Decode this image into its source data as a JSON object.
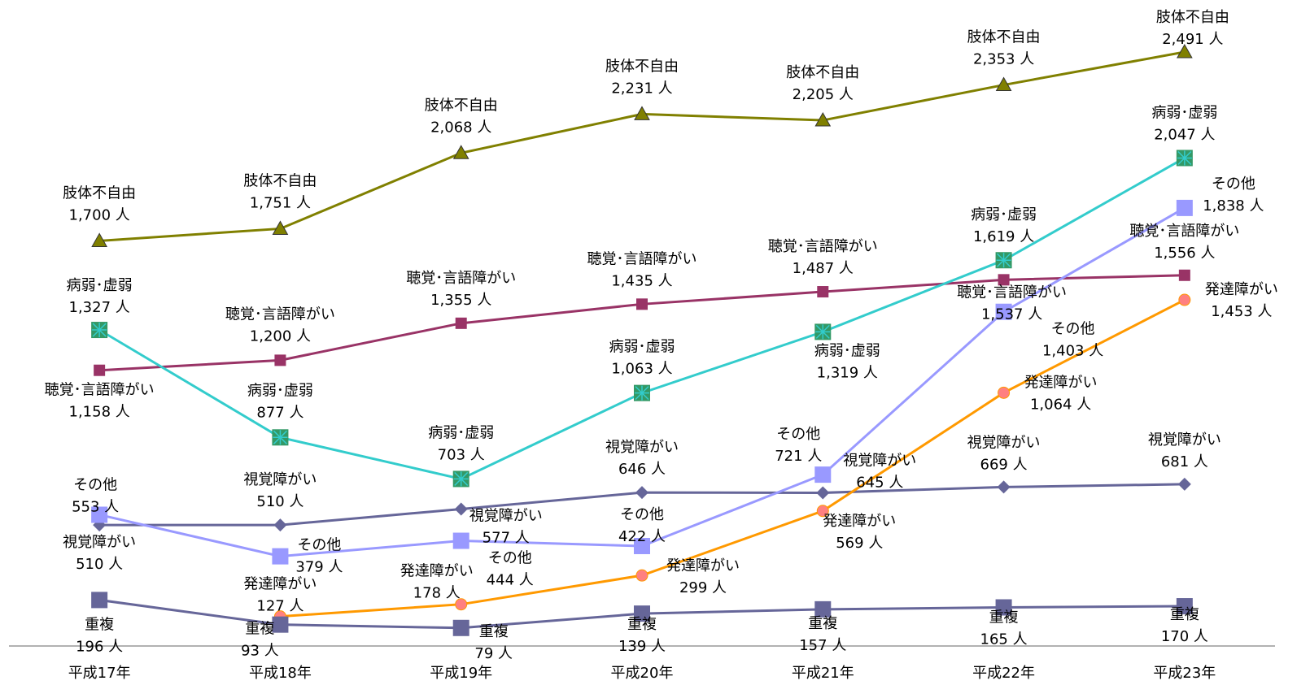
{
  "chart_data": {
    "type": "line",
    "categories": [
      "平成17年",
      "平成18年",
      "平成19年",
      "平成20年",
      "平成21年",
      "平成22年",
      "平成23年"
    ],
    "series": [
      {
        "name": "肢体不自由",
        "color": "#808000",
        "marker": "triangle",
        "values": [
          1700,
          1751,
          2068,
          2231,
          2205,
          2353,
          2491
        ],
        "value_labels": [
          "1,700 人",
          "1,751 人",
          "2,068 人",
          "2,231 人",
          "2,205 人",
          "2,353 人",
          "2,491 人"
        ]
      },
      {
        "name": "聴覚･言語障がい",
        "color": "#993366",
        "marker": "square",
        "values": [
          1158,
          1200,
          1355,
          1435,
          1487,
          1537,
          1556
        ],
        "value_labels": [
          "1,158 人",
          "1,200 人",
          "1,355 人",
          "1,435 人",
          "1,487 人",
          "1,537 人",
          "1,556 人"
        ]
      },
      {
        "name": "病弱･虚弱",
        "color": "#33cccc",
        "marker": "star-square",
        "values": [
          1327,
          877,
          703,
          1063,
          1319,
          1619,
          2047
        ],
        "value_labels": [
          "1,327 人",
          "877 人",
          "703 人",
          "1,063 人",
          "1,319 人",
          "1,619 人",
          "2,047 人"
        ]
      },
      {
        "name": "視覚障がい",
        "color": "#666699",
        "marker": "diamond",
        "values": [
          510,
          510,
          577,
          646,
          645,
          669,
          681
        ],
        "value_labels": [
          "510 人",
          "510 人",
          "577 人",
          "646 人",
          "645 人",
          "669 人",
          "681 人"
        ]
      },
      {
        "name": "その他",
        "color": "#9999ff",
        "marker": "big-square",
        "values": [
          553,
          379,
          444,
          422,
          721,
          1403,
          1838
        ],
        "value_labels": [
          "553 人",
          "379 人",
          "444 人",
          "422 人",
          "721 人",
          "1,403 人",
          "1,838 人"
        ]
      },
      {
        "name": "発達障がい",
        "color": "#ff9900",
        "marker": "circle",
        "values": [
          null,
          127,
          178,
          299,
          569,
          1064,
          1453
        ],
        "value_labels": [
          null,
          "127 人",
          "178 人",
          "299 人",
          "569 人",
          "1,064 人",
          "1,453 人"
        ]
      },
      {
        "name": "重複",
        "color": "#666699",
        "marker": "big-square",
        "values": [
          196,
          93,
          79,
          139,
          157,
          165,
          170
        ],
        "value_labels": [
          "196 人",
          "93 人",
          "79 人",
          "139 人",
          "157 人",
          "165 人",
          "170 人"
        ]
      }
    ]
  }
}
